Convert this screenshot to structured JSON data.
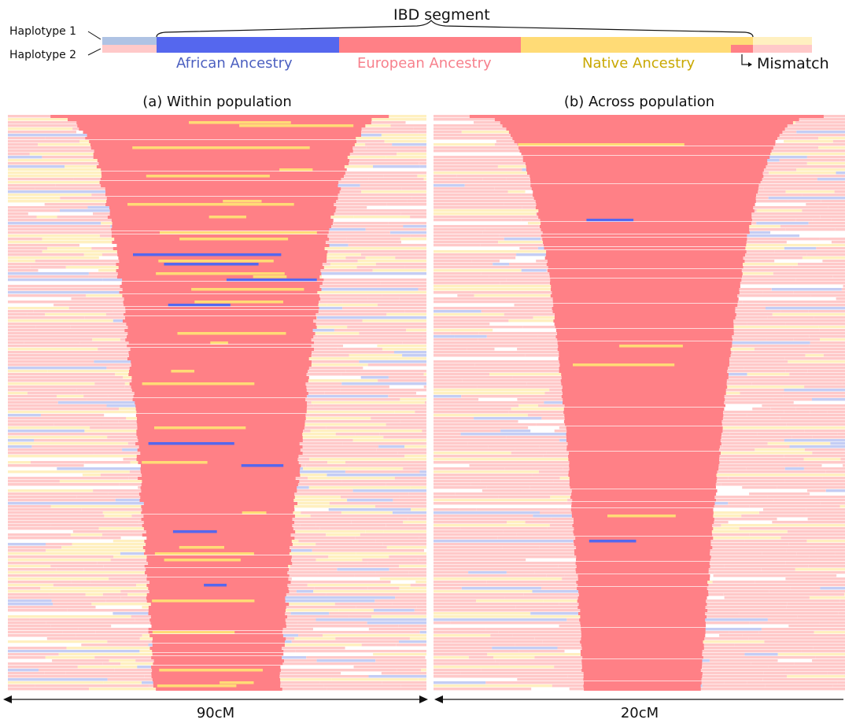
{
  "legend": {
    "haplotype1": "Haplotype 1",
    "haplotype2": "Haplotype 2",
    "ibd_label": "IBD segment",
    "african": "African Ancestry",
    "european": "European Ancestry",
    "native": "Native Ancestry",
    "mismatch": "Mismatch"
  },
  "colors": {
    "african_dark": "#5567ee",
    "african_light": "#c4cdf4",
    "european_dark": "#ff8086",
    "european_light": "#ffc9c9",
    "native_dark": "#ffdb76",
    "native_light": "#fff0c0",
    "haplotype1_left": "#afc3e4",
    "african_text": "#4b5fc0",
    "european_text": "#f7808c",
    "native_text": "#c9a800"
  },
  "panels": [
    {
      "title": "(a) Within population",
      "scale_label": "90cM"
    },
    {
      "title": "(b) Across population",
      "scale_label": "20cM"
    }
  ]
}
